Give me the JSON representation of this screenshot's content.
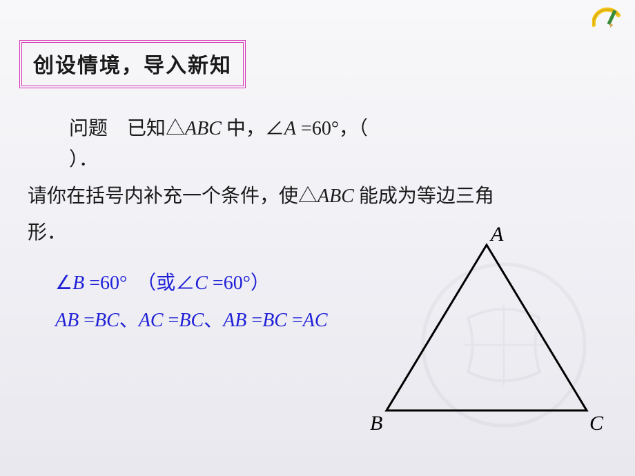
{
  "title": "创设情境，导入新知",
  "problem": {
    "lead": "问题　已知△",
    "tri1": "ABC",
    "mid1": " 中，∠",
    "angA": "A",
    "eq60": " =60°，（",
    "close": "）．",
    "instr1": "请你在括号内补充一个条件，使△",
    "tri2": "ABC",
    "instr2": " 能成为等边三角",
    "instr3": "形．"
  },
  "answers": {
    "a1_pre": "∠",
    "a1_B": "B",
    "a1_mid": " =60°　（或∠",
    "a1_C": "C",
    "a1_post": " =60°）",
    "a2_1": "AB",
    "a2_eq": " =",
    "a2_2": "BC",
    "a2_sep": "、",
    "a2_3": "AC",
    "a2_4": "BC",
    "a2_5": "AB",
    "a2_6": "BC",
    "a2_7": "AC"
  },
  "labels": {
    "A": "A",
    "B": "B",
    "C": "C"
  },
  "style": {
    "title_border_color": "#d633b5",
    "text_color": "#1a1a1a",
    "answer_color": "#2020d8",
    "triangle_stroke": "#000000",
    "triangle_stroke_width": 3,
    "label_font_size": 30,
    "watermark_opacity": 0.08,
    "bg_gradient_top": "#f8f8fa",
    "bg_gradient_bottom": "#e8e8ee",
    "ruler_yellow": "#f5c518",
    "pencil_green": "#3a8b3a"
  },
  "triangle": {
    "A": [
      185,
      30
    ],
    "B": [
      40,
      270
    ],
    "C": [
      330,
      270
    ]
  }
}
